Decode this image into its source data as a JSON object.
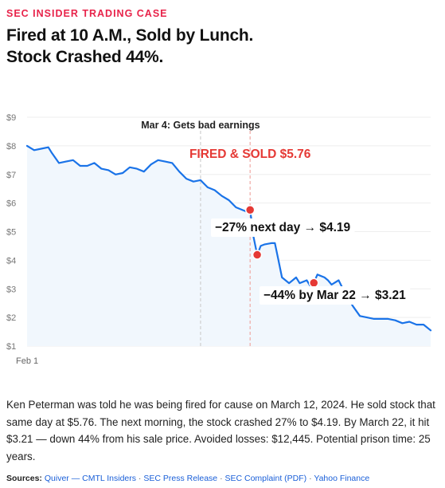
{
  "kicker": "SEC INSIDER TRADING CASE",
  "headline": {
    "line1": "Fired at 10 A.M., Sold by Lunch.",
    "line2": "Stock Crashed 44%."
  },
  "chart_data": {
    "type": "line",
    "title": "",
    "xlabel": "",
    "ylabel": "",
    "ylim": [
      1,
      9
    ],
    "y_ticks": [
      "$9",
      "$8",
      "$7",
      "$6",
      "$5",
      "$4",
      "$3",
      "$2",
      "$1"
    ],
    "x_ticks": [
      {
        "label": "Feb 1",
        "x": 0
      }
    ],
    "grid": true,
    "series": [
      {
        "color": "#1a73e8",
        "points": [
          [
            0,
            8.0
          ],
          [
            2,
            7.85
          ],
          [
            4,
            7.9
          ],
          [
            6,
            7.95
          ],
          [
            7,
            7.75
          ],
          [
            9,
            7.4
          ],
          [
            11,
            7.45
          ],
          [
            13,
            7.5
          ],
          [
            15,
            7.3
          ],
          [
            17,
            7.3
          ],
          [
            19,
            7.4
          ],
          [
            21,
            7.2
          ],
          [
            23,
            7.15
          ],
          [
            25,
            7.0
          ],
          [
            27,
            7.05
          ],
          [
            29,
            7.25
          ],
          [
            31,
            7.2
          ],
          [
            33,
            7.1
          ],
          [
            35,
            7.35
          ],
          [
            37,
            7.5
          ],
          [
            39,
            7.45
          ],
          [
            41,
            7.4
          ],
          [
            43,
            7.1
          ],
          [
            45,
            6.85
          ],
          [
            47,
            6.75
          ],
          [
            49,
            6.8
          ],
          [
            51,
            6.55
          ],
          [
            53,
            6.45
          ],
          [
            55,
            6.25
          ],
          [
            57,
            6.1
          ],
          [
            59,
            5.85
          ],
          [
            61,
            5.75
          ],
          [
            62,
            5.7
          ],
          [
            63,
            5.76
          ],
          [
            64,
            4.8
          ],
          [
            65,
            4.19
          ],
          [
            66,
            4.5
          ],
          [
            67,
            4.55
          ],
          [
            69,
            4.6
          ],
          [
            70,
            4.6
          ],
          [
            71,
            4.0
          ],
          [
            72,
            3.4
          ],
          [
            74,
            3.2
          ],
          [
            75,
            3.3
          ],
          [
            76,
            3.4
          ],
          [
            77,
            3.2
          ],
          [
            78,
            3.25
          ],
          [
            79,
            3.3
          ],
          [
            80,
            3.1
          ],
          [
            81,
            3.21
          ],
          [
            82,
            3.5
          ],
          [
            84,
            3.4
          ],
          [
            85,
            3.3
          ],
          [
            86,
            3.15
          ],
          [
            88,
            3.3
          ],
          [
            90,
            2.8
          ],
          [
            92,
            2.4
          ],
          [
            94,
            2.05
          ],
          [
            96,
            2.0
          ],
          [
            98,
            1.95
          ],
          [
            100,
            1.95
          ],
          [
            102,
            1.95
          ],
          [
            104,
            1.9
          ],
          [
            106,
            1.8
          ],
          [
            108,
            1.85
          ],
          [
            110,
            1.75
          ],
          [
            112,
            1.75
          ],
          [
            114,
            1.55
          ]
        ]
      }
    ],
    "reference_lines": [
      {
        "x": 49,
        "label": "Mar 4: Gets bad earnings"
      },
      {
        "x": 63
      }
    ],
    "markers": [
      {
        "x": 63,
        "y": 5.76,
        "label": "FIRED & SOLD $5.76",
        "color": "#e53935"
      },
      {
        "x": 65,
        "y": 4.19,
        "label": "−27% next day → $4.19",
        "color": "#e53935"
      },
      {
        "x": 81,
        "y": 3.21,
        "label": "−44% by Mar 22 → $3.21",
        "color": "#e53935"
      }
    ],
    "colors": {
      "line": "#1a73e8",
      "fill": "#f1f7fd",
      "accent": "#e53935",
      "grid": "#eeeeee"
    }
  },
  "caption": "Ken Peterman was told he was being fired for cause on March 12, 2024. He sold stock that same day at $5.76. The next morning, the stock crashed 27% to $4.19. By March 22, it hit $3.21 — down 44% from his sale price. Avoided losses: $12,445. Potential prison time: 25 years.",
  "sources": {
    "label": "Sources:",
    "links": [
      "Quiver — CMTL Insiders",
      "SEC Press Release",
      "SEC Complaint (PDF)",
      "Yahoo Finance"
    ]
  }
}
